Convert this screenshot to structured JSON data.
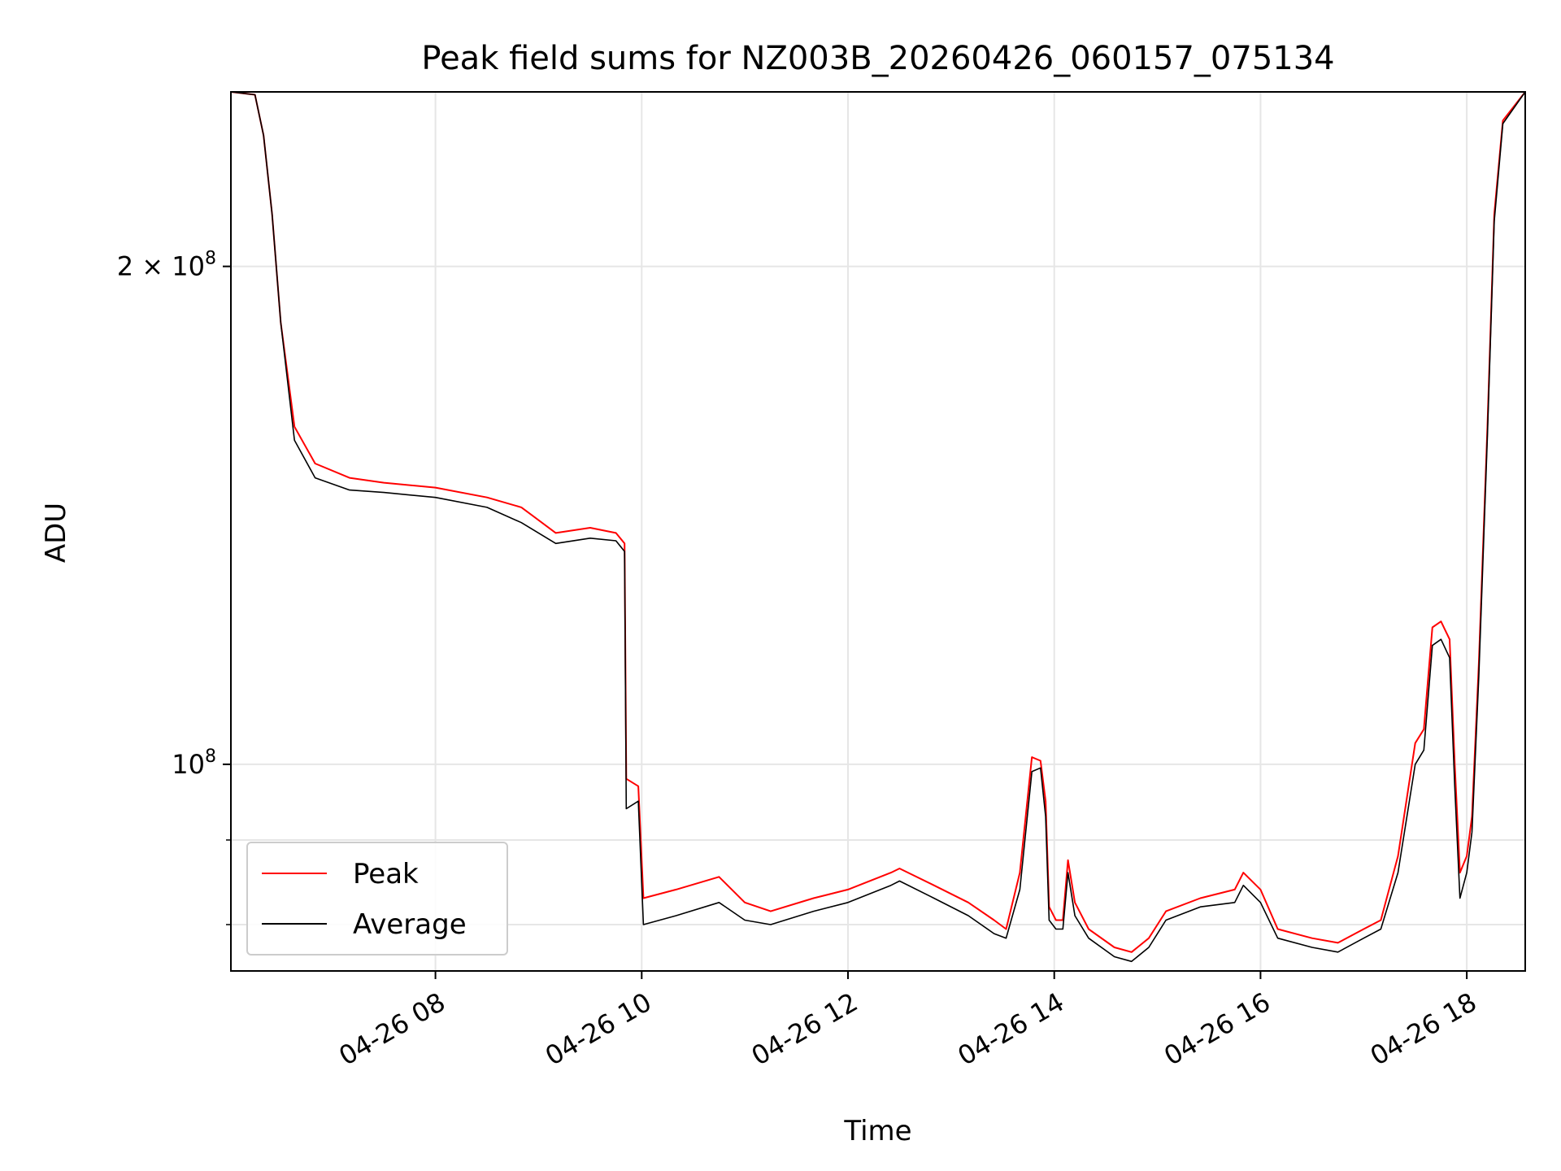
{
  "chart_data": {
    "type": "line",
    "title": "Peak field sums for NZ003B_20260426_060157_075134",
    "xlabel": "Time",
    "ylabel": "ADU",
    "x_axis_type": "datetime",
    "xlim": [
      "2026-04-26 06:01",
      "2026-04-26 18:34"
    ],
    "ylim": [
      75000000,
      255000000
    ],
    "y_scale": "log",
    "x_ticks": [
      {
        "t": "2026-04-26 08:00",
        "label": "04-26 08"
      },
      {
        "t": "2026-04-26 10:00",
        "label": "04-26 10"
      },
      {
        "t": "2026-04-26 12:00",
        "label": "04-26 12"
      },
      {
        "t": "2026-04-26 14:00",
        "label": "04-26 14"
      },
      {
        "t": "2026-04-26 16:00",
        "label": "04-26 16"
      },
      {
        "t": "2026-04-26 18:00",
        "label": "04-26 18"
      }
    ],
    "y_ticks": [
      {
        "value": 200000000,
        "mantissa": "2 × 10",
        "exp": "8"
      },
      {
        "value": 100000000,
        "mantissa": "10",
        "exp": "8"
      }
    ],
    "y_minor_ticks": [
      80000000,
      90000000
    ],
    "grid": true,
    "legend": {
      "position": "lower-left"
    },
    "series": [
      {
        "name": "Peak",
        "color": "#ff0000",
        "points": [
          [
            "2026-04-26 06:01",
            255000000
          ],
          [
            "2026-04-26 06:15",
            254000000
          ],
          [
            "2026-04-26 06:20",
            240000000
          ],
          [
            "2026-04-26 06:25",
            215000000
          ],
          [
            "2026-04-26 06:30",
            185000000
          ],
          [
            "2026-04-26 06:38",
            160000000
          ],
          [
            "2026-04-26 06:50",
            152000000
          ],
          [
            "2026-04-26 07:10",
            149000000
          ],
          [
            "2026-04-26 07:30",
            148000000
          ],
          [
            "2026-04-26 08:00",
            147000000
          ],
          [
            "2026-04-26 08:30",
            145000000
          ],
          [
            "2026-04-26 08:50",
            143000000
          ],
          [
            "2026-04-26 09:10",
            138000000
          ],
          [
            "2026-04-26 09:30",
            139000000
          ],
          [
            "2026-04-26 09:45",
            138000000
          ],
          [
            "2026-04-26 09:50",
            136000000
          ],
          [
            "2026-04-26 09:51",
            98000000
          ],
          [
            "2026-04-26 09:58",
            97000000
          ],
          [
            "2026-04-26 10:01",
            83000000
          ],
          [
            "2026-04-26 10:20",
            84000000
          ],
          [
            "2026-04-26 10:45",
            85500000
          ],
          [
            "2026-04-26 11:00",
            82500000
          ],
          [
            "2026-04-26 11:15",
            81500000
          ],
          [
            "2026-04-26 11:40",
            83000000
          ],
          [
            "2026-04-26 12:00",
            84000000
          ],
          [
            "2026-04-26 12:25",
            86000000
          ],
          [
            "2026-04-26 12:30",
            86500000
          ],
          [
            "2026-04-26 12:50",
            84500000
          ],
          [
            "2026-04-26 13:10",
            82500000
          ],
          [
            "2026-04-26 13:25",
            80500000
          ],
          [
            "2026-04-26 13:32",
            79500000
          ],
          [
            "2026-04-26 13:40",
            86000000
          ],
          [
            "2026-04-26 13:47",
            101000000
          ],
          [
            "2026-04-26 13:52",
            100500000
          ],
          [
            "2026-04-26 13:55",
            95000000
          ],
          [
            "2026-04-26 13:57",
            82000000
          ],
          [
            "2026-04-26 14:01",
            80500000
          ],
          [
            "2026-04-26 14:05",
            80500000
          ],
          [
            "2026-04-26 14:08",
            87500000
          ],
          [
            "2026-04-26 14:12",
            82500000
          ],
          [
            "2026-04-26 14:20",
            79500000
          ],
          [
            "2026-04-26 14:35",
            77500000
          ],
          [
            "2026-04-26 14:45",
            77000000
          ],
          [
            "2026-04-26 14:55",
            78500000
          ],
          [
            "2026-04-26 15:05",
            81500000
          ],
          [
            "2026-04-26 15:25",
            83000000
          ],
          [
            "2026-04-26 15:45",
            84000000
          ],
          [
            "2026-04-26 15:50",
            86000000
          ],
          [
            "2026-04-26 16:00",
            84000000
          ],
          [
            "2026-04-26 16:10",
            79500000
          ],
          [
            "2026-04-26 16:30",
            78500000
          ],
          [
            "2026-04-26 16:45",
            78000000
          ],
          [
            "2026-04-26 17:00",
            79500000
          ],
          [
            "2026-04-26 17:10",
            80500000
          ],
          [
            "2026-04-26 17:20",
            88000000
          ],
          [
            "2026-04-26 17:30",
            103000000
          ],
          [
            "2026-04-26 17:35",
            105000000
          ],
          [
            "2026-04-26 17:40",
            121000000
          ],
          [
            "2026-04-26 17:45",
            122000000
          ],
          [
            "2026-04-26 17:50",
            119000000
          ],
          [
            "2026-04-26 17:53",
            100000000
          ],
          [
            "2026-04-26 17:56",
            86000000
          ],
          [
            "2026-04-26 18:00",
            88000000
          ],
          [
            "2026-04-26 18:03",
            93000000
          ],
          [
            "2026-04-26 18:07",
            115000000
          ],
          [
            "2026-04-26 18:12",
            160000000
          ],
          [
            "2026-04-26 18:16",
            215000000
          ],
          [
            "2026-04-26 18:21",
            245000000
          ],
          [
            "2026-04-26 18:34",
            255000000
          ]
        ]
      },
      {
        "name": "Average",
        "color": "#000000",
        "points": [
          [
            "2026-04-26 06:01",
            255000000
          ],
          [
            "2026-04-26 06:15",
            254000000
          ],
          [
            "2026-04-26 06:20",
            240000000
          ],
          [
            "2026-04-26 06:25",
            215000000
          ],
          [
            "2026-04-26 06:30",
            185000000
          ],
          [
            "2026-04-26 06:38",
            157000000
          ],
          [
            "2026-04-26 06:50",
            149000000
          ],
          [
            "2026-04-26 07:10",
            146500000
          ],
          [
            "2026-04-26 07:30",
            146000000
          ],
          [
            "2026-04-26 08:00",
            145000000
          ],
          [
            "2026-04-26 08:30",
            143000000
          ],
          [
            "2026-04-26 08:50",
            140000000
          ],
          [
            "2026-04-26 09:10",
            136000000
          ],
          [
            "2026-04-26 09:30",
            137000000
          ],
          [
            "2026-04-26 09:45",
            136500000
          ],
          [
            "2026-04-26 09:50",
            134500000
          ],
          [
            "2026-04-26 09:51",
            94000000
          ],
          [
            "2026-04-26 09:58",
            95000000
          ],
          [
            "2026-04-26 10:01",
            80000000
          ],
          [
            "2026-04-26 10:20",
            81000000
          ],
          [
            "2026-04-26 10:45",
            82500000
          ],
          [
            "2026-04-26 11:00",
            80500000
          ],
          [
            "2026-04-26 11:15",
            80000000
          ],
          [
            "2026-04-26 11:40",
            81500000
          ],
          [
            "2026-04-26 12:00",
            82500000
          ],
          [
            "2026-04-26 12:25",
            84500000
          ],
          [
            "2026-04-26 12:30",
            85000000
          ],
          [
            "2026-04-26 12:50",
            83000000
          ],
          [
            "2026-04-26 13:10",
            81000000
          ],
          [
            "2026-04-26 13:25",
            79000000
          ],
          [
            "2026-04-26 13:32",
            78500000
          ],
          [
            "2026-04-26 13:40",
            84000000
          ],
          [
            "2026-04-26 13:47",
            99000000
          ],
          [
            "2026-04-26 13:52",
            99500000
          ],
          [
            "2026-04-26 13:55",
            93000000
          ],
          [
            "2026-04-26 13:57",
            80500000
          ],
          [
            "2026-04-26 14:01",
            79500000
          ],
          [
            "2026-04-26 14:05",
            79500000
          ],
          [
            "2026-04-26 14:08",
            86000000
          ],
          [
            "2026-04-26 14:12",
            81000000
          ],
          [
            "2026-04-26 14:20",
            78500000
          ],
          [
            "2026-04-26 14:35",
            76500000
          ],
          [
            "2026-04-26 14:45",
            76000000
          ],
          [
            "2026-04-26 14:55",
            77500000
          ],
          [
            "2026-04-26 15:05",
            80500000
          ],
          [
            "2026-04-26 15:25",
            82000000
          ],
          [
            "2026-04-26 15:45",
            82500000
          ],
          [
            "2026-04-26 15:50",
            84500000
          ],
          [
            "2026-04-26 16:00",
            82500000
          ],
          [
            "2026-04-26 16:10",
            78500000
          ],
          [
            "2026-04-26 16:30",
            77500000
          ],
          [
            "2026-04-26 16:45",
            77000000
          ],
          [
            "2026-04-26 17:00",
            78500000
          ],
          [
            "2026-04-26 17:10",
            79500000
          ],
          [
            "2026-04-26 17:20",
            86000000
          ],
          [
            "2026-04-26 17:30",
            100000000
          ],
          [
            "2026-04-26 17:35",
            102000000
          ],
          [
            "2026-04-26 17:40",
            118000000
          ],
          [
            "2026-04-26 17:45",
            119000000
          ],
          [
            "2026-04-26 17:50",
            116000000
          ],
          [
            "2026-04-26 17:53",
            97000000
          ],
          [
            "2026-04-26 17:56",
            83000000
          ],
          [
            "2026-04-26 18:00",
            86000000
          ],
          [
            "2026-04-26 18:03",
            91000000
          ],
          [
            "2026-04-26 18:07",
            113000000
          ],
          [
            "2026-04-26 18:12",
            158000000
          ],
          [
            "2026-04-26 18:16",
            213000000
          ],
          [
            "2026-04-26 18:21",
            244000000
          ],
          [
            "2026-04-26 18:34",
            255000000
          ]
        ]
      }
    ]
  }
}
